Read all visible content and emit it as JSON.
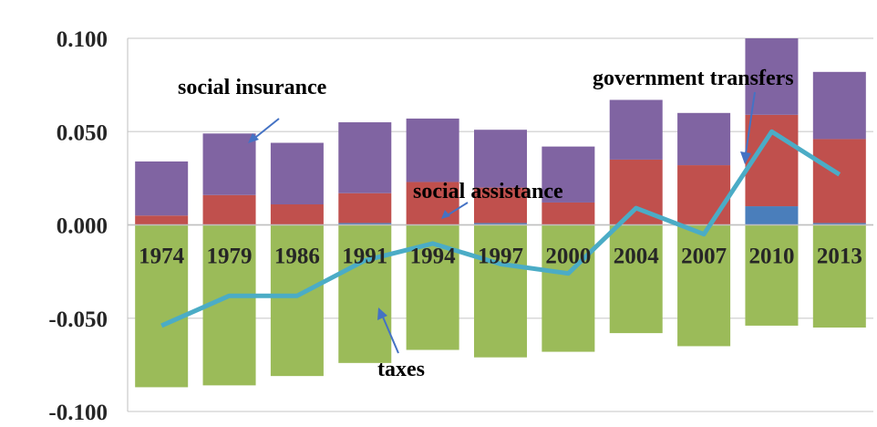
{
  "chart_data": {
    "type": "bar",
    "stacked": true,
    "title": "",
    "xlabel": "",
    "ylabel": "",
    "ylim": [
      -0.1,
      0.1
    ],
    "yticks": [
      0.1,
      0.05,
      0.0,
      -0.05,
      -0.1
    ],
    "ytick_labels": [
      "0.100",
      "0.050",
      "0.000",
      "-0.050",
      "-0.100"
    ],
    "grid": true,
    "legend": "none",
    "categories": [
      "1974",
      "1979",
      "1986",
      "1991",
      "1994",
      "1997",
      "2000",
      "2004",
      "2007",
      "2010",
      "2013"
    ],
    "series": [
      {
        "key": "blue",
        "type": "bar",
        "color": "#4a7ebb",
        "values": [
          0.0,
          0.0,
          0.0,
          0.001,
          0.0,
          0.001,
          0.0,
          0.0,
          0.0,
          0.01,
          0.001
        ]
      },
      {
        "key": "red",
        "type": "bar",
        "color": "#c0504d",
        "values": [
          0.005,
          0.016,
          0.011,
          0.016,
          0.023,
          0.019,
          0.012,
          0.035,
          0.032,
          0.049,
          0.045
        ]
      },
      {
        "key": "purple",
        "type": "bar",
        "color": "#8064a2",
        "values": [
          0.029,
          0.033,
          0.033,
          0.038,
          0.034,
          0.031,
          0.03,
          0.032,
          0.028,
          0.041,
          0.036
        ]
      },
      {
        "key": "green",
        "type": "bar",
        "color": "#9bbb59",
        "values": [
          -0.087,
          -0.086,
          -0.081,
          -0.074,
          -0.067,
          -0.071,
          -0.068,
          -0.058,
          -0.065,
          -0.054,
          -0.055
        ]
      },
      {
        "key": "line",
        "type": "line",
        "color": "#4bacc6",
        "values": [
          -0.054,
          -0.038,
          -0.038,
          -0.019,
          -0.01,
          -0.021,
          -0.026,
          0.009,
          -0.005,
          0.05,
          0.027
        ]
      }
    ],
    "annotations": [
      {
        "text": "social insurance",
        "target": "purple"
      },
      {
        "text": "social assistance",
        "target": "red"
      },
      {
        "text": "government transfers",
        "target": "line"
      },
      {
        "text": "taxes",
        "target": "green"
      }
    ],
    "colors": {
      "arrow": "#4472c4",
      "grid": "#d9d9d9",
      "axis": "#bfbfbf"
    }
  }
}
